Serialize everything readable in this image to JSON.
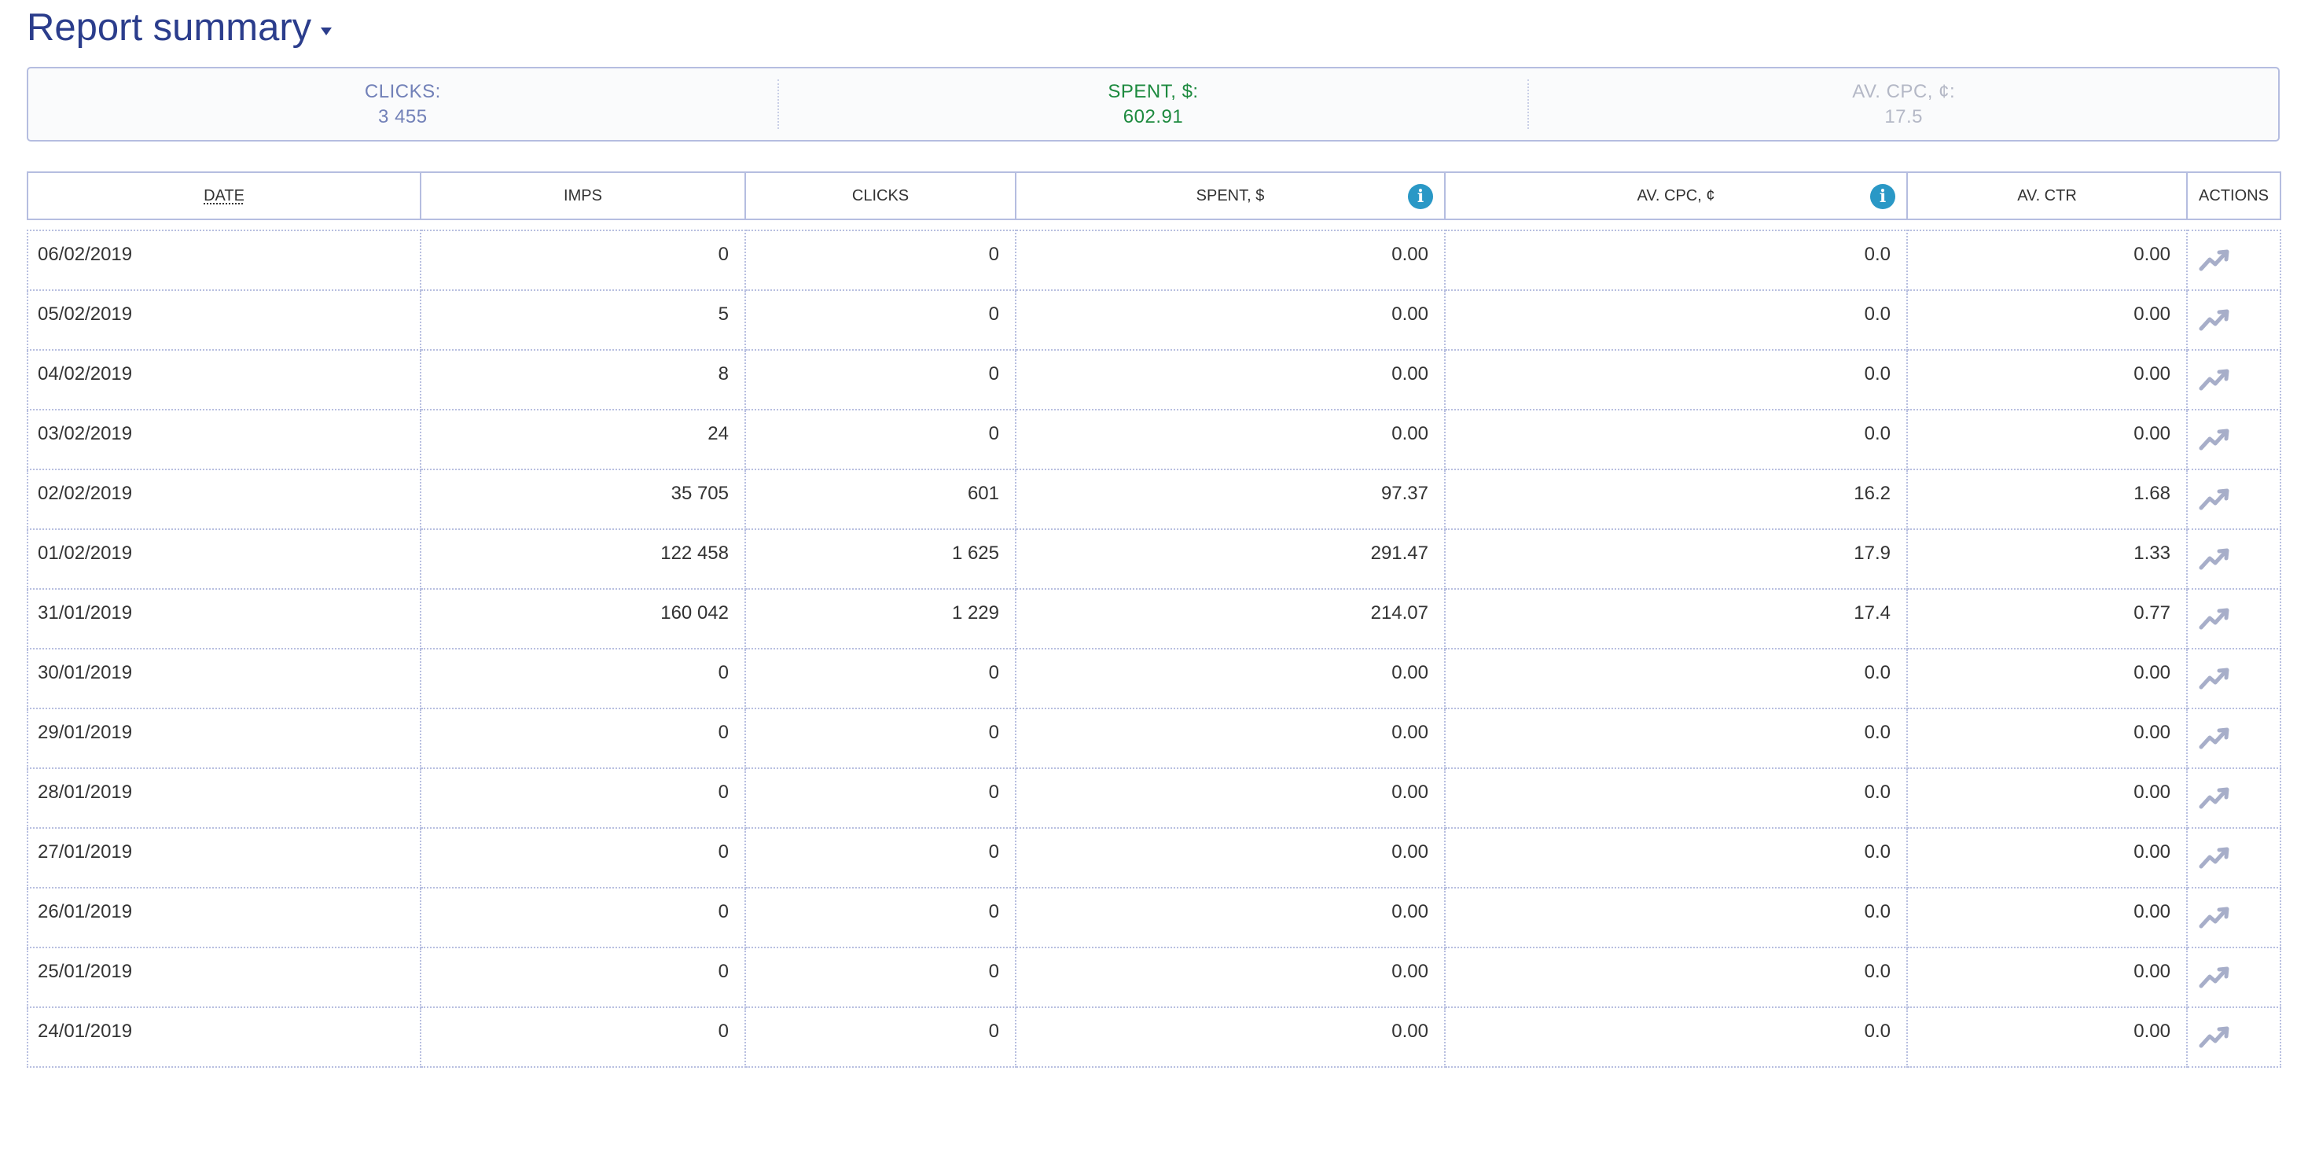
{
  "header": {
    "title": "Report summary"
  },
  "summary": {
    "clicks_label": "CLICKS:",
    "clicks_value": "3 455",
    "spent_label": "SPENT, $:",
    "spent_value": "602.91",
    "cpc_label": "AV. CPC, ¢:",
    "cpc_value": "17.5"
  },
  "colors": {
    "accent": "#2b3d8c",
    "spent_green": "#1d8a3f",
    "info_blue": "#2a98c6",
    "border": "#b5bde0",
    "icon_gray": "#a7aec9"
  },
  "table": {
    "headers": {
      "date": "DATE",
      "imps": "IMPS",
      "clicks": "CLICKS",
      "spent": "SPENT, $",
      "cpc": "AV. CPC, ¢",
      "ctr": "AV. CTR",
      "actions": "ACTIONS"
    },
    "rows": [
      {
        "date": "06/02/2019",
        "imps": "0",
        "clicks": "0",
        "spent": "0.00",
        "cpc": "0.0",
        "ctr": "0.00"
      },
      {
        "date": "05/02/2019",
        "imps": "5",
        "clicks": "0",
        "spent": "0.00",
        "cpc": "0.0",
        "ctr": "0.00"
      },
      {
        "date": "04/02/2019",
        "imps": "8",
        "clicks": "0",
        "spent": "0.00",
        "cpc": "0.0",
        "ctr": "0.00"
      },
      {
        "date": "03/02/2019",
        "imps": "24",
        "clicks": "0",
        "spent": "0.00",
        "cpc": "0.0",
        "ctr": "0.00"
      },
      {
        "date": "02/02/2019",
        "imps": "35 705",
        "clicks": "601",
        "spent": "97.37",
        "cpc": "16.2",
        "ctr": "1.68"
      },
      {
        "date": "01/02/2019",
        "imps": "122 458",
        "clicks": "1 625",
        "spent": "291.47",
        "cpc": "17.9",
        "ctr": "1.33"
      },
      {
        "date": "31/01/2019",
        "imps": "160 042",
        "clicks": "1 229",
        "spent": "214.07",
        "cpc": "17.4",
        "ctr": "0.77"
      },
      {
        "date": "30/01/2019",
        "imps": "0",
        "clicks": "0",
        "spent": "0.00",
        "cpc": "0.0",
        "ctr": "0.00"
      },
      {
        "date": "29/01/2019",
        "imps": "0",
        "clicks": "0",
        "spent": "0.00",
        "cpc": "0.0",
        "ctr": "0.00"
      },
      {
        "date": "28/01/2019",
        "imps": "0",
        "clicks": "0",
        "spent": "0.00",
        "cpc": "0.0",
        "ctr": "0.00"
      },
      {
        "date": "27/01/2019",
        "imps": "0",
        "clicks": "0",
        "spent": "0.00",
        "cpc": "0.0",
        "ctr": "0.00"
      },
      {
        "date": "26/01/2019",
        "imps": "0",
        "clicks": "0",
        "spent": "0.00",
        "cpc": "0.0",
        "ctr": "0.00"
      },
      {
        "date": "25/01/2019",
        "imps": "0",
        "clicks": "0",
        "spent": "0.00",
        "cpc": "0.0",
        "ctr": "0.00"
      },
      {
        "date": "24/01/2019",
        "imps": "0",
        "clicks": "0",
        "spent": "0.00",
        "cpc": "0.0",
        "ctr": "0.00"
      }
    ],
    "row_action_icon": "trending-up-icon",
    "info_icon": "info-icon"
  }
}
